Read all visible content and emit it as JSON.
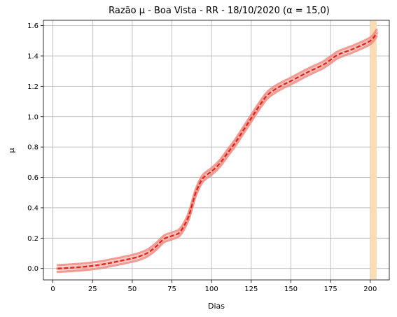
{
  "chart_data": {
    "type": "line",
    "title": "Razão μ - Boa Vista - RR - 18/10/2020 (α = 15,0)",
    "xlabel": "Dias",
    "ylabel": "μ",
    "xlim": [
      -6,
      212
    ],
    "ylim": [
      -0.075,
      1.635
    ],
    "xticks": [
      0,
      25,
      50,
      75,
      100,
      125,
      150,
      175,
      200
    ],
    "yticks": [
      0.0,
      0.2,
      0.4,
      0.6,
      0.8,
      1.0,
      1.2,
      1.4,
      1.6
    ],
    "xtick_labels": [
      "0",
      "25",
      "50",
      "75",
      "100",
      "125",
      "150",
      "175",
      "200"
    ],
    "ytick_labels": [
      "0.0",
      "0.2",
      "0.4",
      "0.6",
      "0.8",
      "1.0",
      "1.2",
      "1.4",
      "1.6"
    ],
    "grid": true,
    "band_width": 0.022,
    "highlight_span": [
      200,
      204
    ],
    "colors": {
      "line": "#e0221c",
      "band": "#f08a80",
      "highlight": "#fddcb4",
      "grid": "#b0b0b0"
    },
    "x": [
      3,
      10,
      20,
      30,
      40,
      50,
      55,
      60,
      65,
      70,
      75,
      80,
      85,
      88,
      90,
      93,
      95,
      98,
      100,
      105,
      110,
      115,
      120,
      125,
      130,
      135,
      140,
      145,
      150,
      160,
      170,
      175,
      180,
      190,
      200,
      204
    ],
    "y": [
      0.0,
      0.004,
      0.012,
      0.025,
      0.045,
      0.067,
      0.082,
      0.105,
      0.145,
      0.195,
      0.215,
      0.24,
      0.33,
      0.43,
      0.5,
      0.57,
      0.6,
      0.625,
      0.64,
      0.69,
      0.76,
      0.83,
      0.91,
      0.99,
      1.07,
      1.14,
      1.18,
      1.21,
      1.235,
      1.29,
      1.34,
      1.375,
      1.41,
      1.45,
      1.5,
      1.55
    ]
  }
}
